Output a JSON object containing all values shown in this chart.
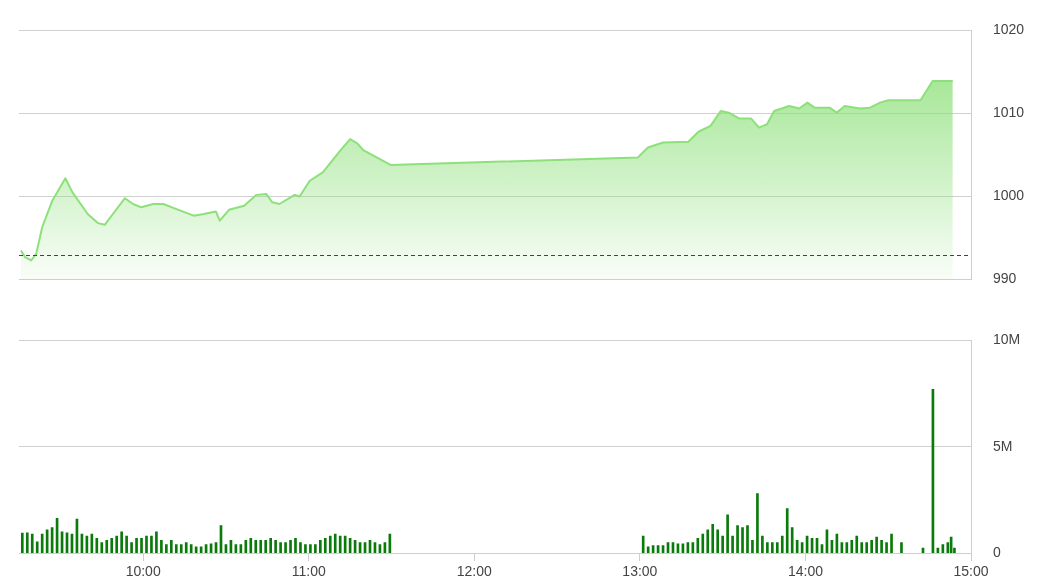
{
  "chart_data": [
    {
      "type": "area",
      "color": "#8de07a",
      "xlim": [
        9.25,
        15
      ],
      "ylim": [
        990,
        1020
      ],
      "yticks": [
        990,
        1000,
        1010,
        1020
      ],
      "grid": "y",
      "tick_labels": "y",
      "x": [
        9.262,
        9.287,
        9.323,
        9.354,
        9.39,
        9.451,
        9.53,
        9.573,
        9.665,
        9.726,
        9.768,
        9.817,
        9.89,
        9.939,
        9.988,
        10.061,
        10.122,
        10.213,
        10.305,
        10.366,
        10.439,
        10.463,
        10.518,
        10.61,
        10.683,
        10.744,
        10.78,
        10.823,
        10.915,
        10.945,
        11.006,
        11.085,
        11.189,
        11.25,
        11.293,
        11.329,
        11.402,
        11.494,
        12.988,
        13.049,
        13.14,
        13.293,
        13.354,
        13.427,
        13.488,
        13.537,
        13.598,
        13.671,
        13.72,
        13.768,
        13.811,
        13.902,
        13.963,
        14.012,
        14.055,
        14.146,
        14.189,
        14.238,
        14.329,
        14.39,
        14.451,
        14.5,
        14.695,
        14.768,
        14.89
      ],
      "values": [
        993.5,
        992.7,
        992.3,
        993.1,
        996.3,
        999.5,
        1002.2,
        1000.5,
        997.9,
        996.8,
        996.6,
        997.9,
        999.8,
        999.1,
        998.7,
        999.1,
        999.1,
        998.4,
        997.7,
        997.9,
        998.2,
        997.1,
        998.4,
        998.9,
        1000.2,
        1000.3,
        999.3,
        999.1,
        1000.2,
        1000,
        1001.9,
        1002.9,
        1005.5,
        1006.9,
        1006.4,
        1005.6,
        1004.8,
        1003.8,
        1004.7,
        1005.9,
        1006.5,
        1006.6,
        1007.8,
        1008.5,
        1010.3,
        1010.1,
        1009.4,
        1009.4,
        1008.3,
        1008.7,
        1010.3,
        1010.9,
        1010.6,
        1011.3,
        1010.7,
        1010.7,
        1010.1,
        1010.9,
        1010.6,
        1010.7,
        1011.3,
        1011.6,
        1011.6,
        1013.9,
        1013.9
      ],
      "ref_lines": [
        {
          "axis": "y",
          "value": 992.9,
          "color": "#e00000",
          "line_style": "dashed"
        }
      ]
    },
    {
      "type": "bar",
      "color": "#0a7a0a",
      "xlim": [
        9.25,
        15
      ],
      "ylim": [
        0,
        10
      ],
      "grid": "y",
      "xticks": [
        {
          "value": 10,
          "label": "10:00"
        },
        {
          "value": 11,
          "label": "11:00"
        },
        {
          "value": 12,
          "label": "12:00"
        },
        {
          "value": 13,
          "label": "13:00"
        },
        {
          "value": 14,
          "label": "14:00"
        },
        {
          "value": 15,
          "label": "15:00"
        }
      ],
      "yticks": [
        0,
        {
          "value": 5,
          "label": "5M"
        },
        {
          "value": 10,
          "label": "10M"
        }
      ],
      "x": [
        9.27,
        9.3,
        9.33,
        9.36,
        9.39,
        9.42,
        9.45,
        9.48,
        9.51,
        9.54,
        9.57,
        9.6,
        9.63,
        9.66,
        9.69,
        9.72,
        9.75,
        9.78,
        9.81,
        9.84,
        9.87,
        9.9,
        9.93,
        9.96,
        9.99,
        10.02,
        10.05,
        10.08,
        10.11,
        10.14,
        10.17,
        10.2,
        10.23,
        10.26,
        10.29,
        10.32,
        10.35,
        10.38,
        10.41,
        10.44,
        10.47,
        10.5,
        10.53,
        10.56,
        10.59,
        10.62,
        10.65,
        10.68,
        10.71,
        10.74,
        10.77,
        10.8,
        10.83,
        10.86,
        10.89,
        10.92,
        10.95,
        10.98,
        11.01,
        11.04,
        11.07,
        11.1,
        11.13,
        11.16,
        11.19,
        11.22,
        11.25,
        11.28,
        11.31,
        11.34,
        11.37,
        11.4,
        11.43,
        11.46,
        11.49,
        13.02,
        13.05,
        13.08,
        13.11,
        13.14,
        13.17,
        13.2,
        13.23,
        13.26,
        13.29,
        13.32,
        13.35,
        13.38,
        13.41,
        13.44,
        13.47,
        13.5,
        13.53,
        13.56,
        13.59,
        13.62,
        13.65,
        13.68,
        13.71,
        13.74,
        13.77,
        13.8,
        13.83,
        13.86,
        13.89,
        13.92,
        13.95,
        13.98,
        14.01,
        14.04,
        14.07,
        14.1,
        14.13,
        14.16,
        14.19,
        14.22,
        14.25,
        14.28,
        14.31,
        14.34,
        14.37,
        14.4,
        14.43,
        14.46,
        14.49,
        14.52,
        14.58,
        14.71,
        14.77,
        14.8,
        14.83,
        14.86,
        14.88,
        14.9
      ],
      "values": [
        0.94,
        0.96,
        0.9,
        0.54,
        0.9,
        1.1,
        1.2,
        1.64,
        1.0,
        0.96,
        0.9,
        1.6,
        0.9,
        0.8,
        0.9,
        0.7,
        0.5,
        0.6,
        0.7,
        0.8,
        1.0,
        0.8,
        0.5,
        0.7,
        0.7,
        0.8,
        0.8,
        1.0,
        0.6,
        0.4,
        0.6,
        0.4,
        0.4,
        0.5,
        0.4,
        0.3,
        0.3,
        0.4,
        0.44,
        0.5,
        1.3,
        0.4,
        0.6,
        0.4,
        0.4,
        0.6,
        0.7,
        0.6,
        0.6,
        0.6,
        0.7,
        0.6,
        0.5,
        0.5,
        0.6,
        0.7,
        0.5,
        0.4,
        0.4,
        0.4,
        0.6,
        0.7,
        0.8,
        0.9,
        0.8,
        0.8,
        0.7,
        0.6,
        0.5,
        0.5,
        0.6,
        0.5,
        0.4,
        0.5,
        0.9,
        0.8,
        0.3,
        0.36,
        0.36,
        0.36,
        0.5,
        0.5,
        0.44,
        0.44,
        0.5,
        0.5,
        0.7,
        0.9,
        1.1,
        1.36,
        1.1,
        0.8,
        1.8,
        0.8,
        1.3,
        1.2,
        1.3,
        0.6,
        2.8,
        0.8,
        0.5,
        0.5,
        0.5,
        0.8,
        2.1,
        1.2,
        0.6,
        0.5,
        0.8,
        0.7,
        0.7,
        0.4,
        1.1,
        0.6,
        0.9,
        0.5,
        0.5,
        0.6,
        0.8,
        0.5,
        0.5,
        0.6,
        0.76,
        0.6,
        0.5,
        0.9,
        0.5,
        0.24,
        7.7,
        0.24,
        0.4,
        0.5,
        0.76,
        0.24
      ]
    }
  ]
}
